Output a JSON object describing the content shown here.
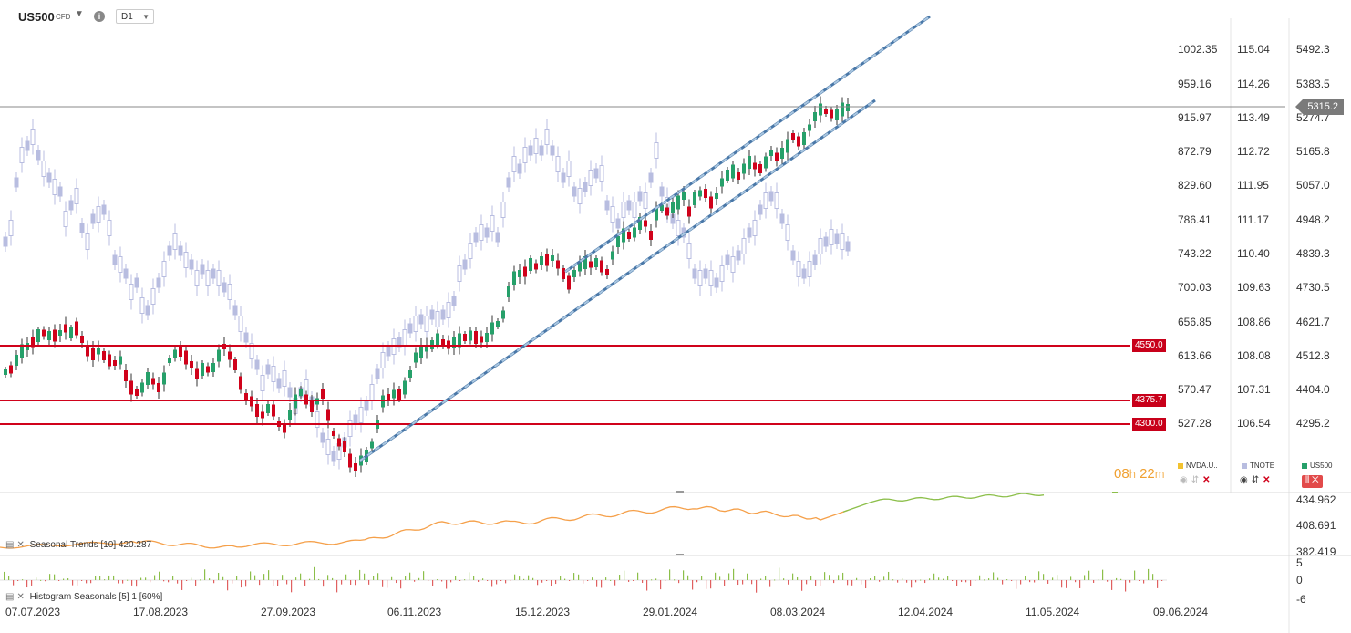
{
  "header": {
    "symbol": "US500",
    "symbol_type": "CFD",
    "info_icon": "i",
    "timeframe": "D1"
  },
  "price_axes": {
    "left_axis": [
      "1002.35",
      "959.16",
      "915.97",
      "872.79",
      "829.60",
      "786.41",
      "743.22",
      "700.03",
      "656.85",
      "613.66",
      "570.47",
      "527.28"
    ],
    "mid_axis": [
      "115.04",
      "114.26",
      "113.49",
      "112.72",
      "111.95",
      "111.17",
      "110.40",
      "109.63",
      "108.86",
      "108.08",
      "107.31",
      "106.54"
    ],
    "right_axis": [
      "5492.3",
      "5383.5",
      "5274.7",
      "5165.8",
      "5057.0",
      "4948.2",
      "4839.3",
      "4730.5",
      "4621.7",
      "4512.8",
      "4404.0",
      "4295.2"
    ]
  },
  "current_price": "5315.2",
  "levels": [
    {
      "label": "4550.0"
    },
    {
      "label": "4375.7"
    },
    {
      "label": "4300.0"
    }
  ],
  "timer": {
    "hours": "08",
    "h_unit": "h",
    "minutes": "22",
    "m_unit": "m"
  },
  "legend": [
    {
      "name": "NVDA.U..",
      "color": "#f2c230"
    },
    {
      "name": "TNOTE",
      "color": "#b8bde0"
    },
    {
      "name": "US500",
      "color": "#26a06a"
    }
  ],
  "seasonal_pane": {
    "label": "Seasonal",
    "params": "Trends  [10]  420.287",
    "axis": [
      "434.962",
      "408.691",
      "382.419"
    ]
  },
  "histogram_pane": {
    "label": "Histogram",
    "params": "Seasonals  [5]  1 [60%]",
    "axis": [
      "5",
      "0",
      "-6"
    ]
  },
  "x_axis": [
    "07.07.2023",
    "17.08.2023",
    "27.09.2023",
    "06.11.2023",
    "15.12.2023",
    "29.01.2024",
    "08.03.2024",
    "12.04.2024",
    "11.05.2024",
    "09.06.2024"
  ],
  "colors": {
    "bull": "#26a06a",
    "bear": "#d0021b",
    "tnote": "#b8bde0",
    "level_line": "#d0021b",
    "channel": "#6b9ac4",
    "seasonal_orange": "#f5a04a",
    "seasonal_green": "#8cbf4a"
  }
}
